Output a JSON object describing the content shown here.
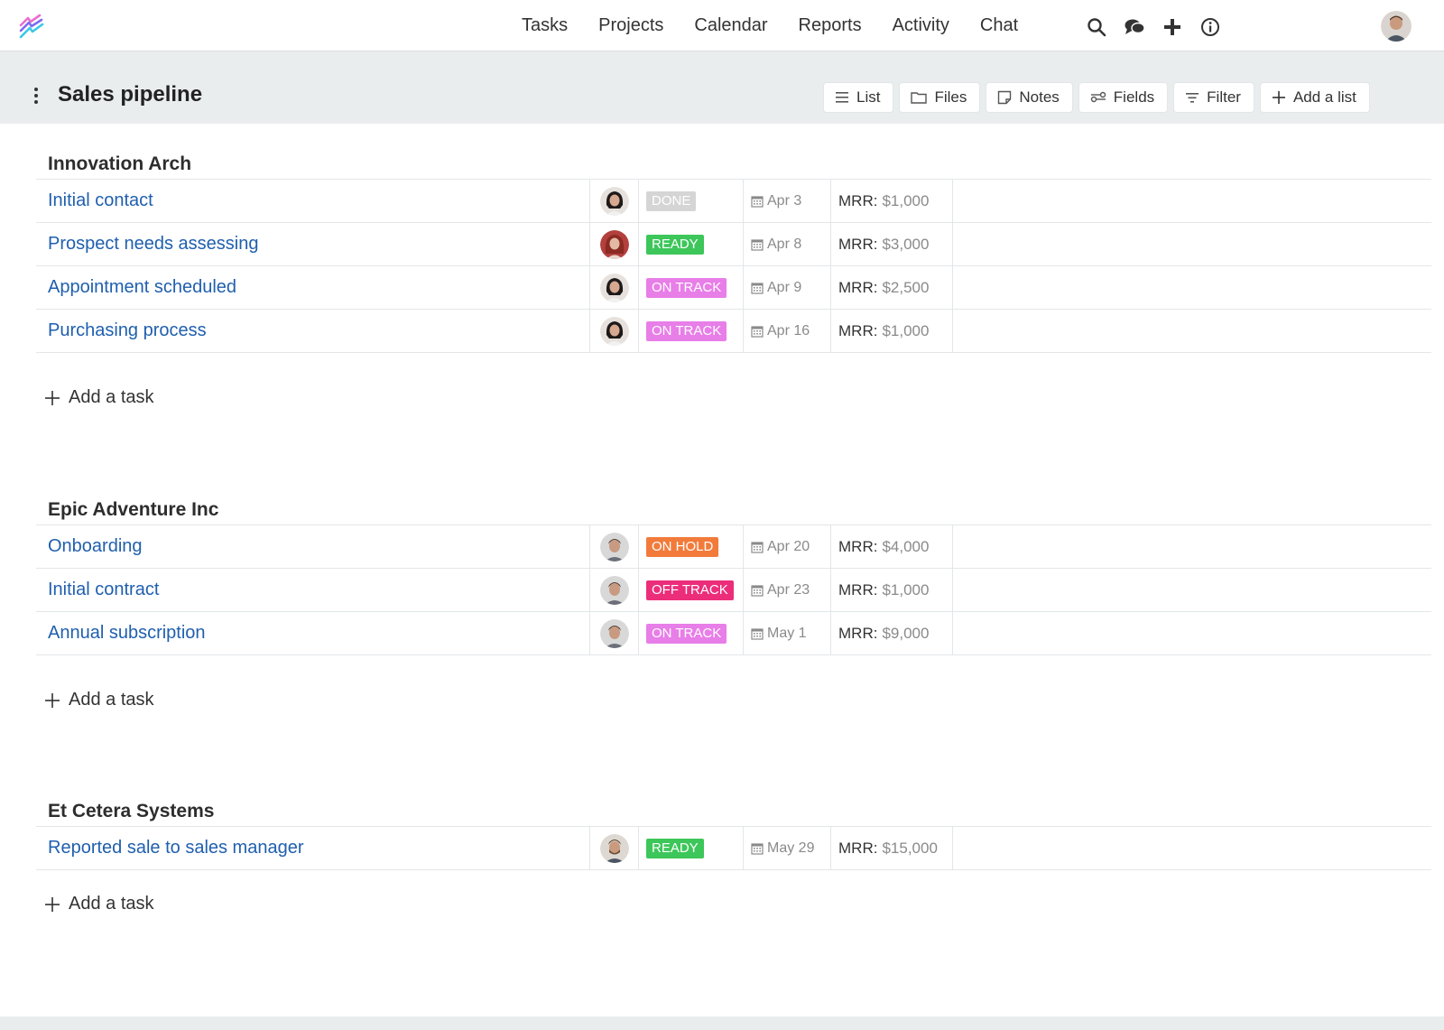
{
  "nav": {
    "links": [
      "Tasks",
      "Projects",
      "Calendar",
      "Reports",
      "Activity",
      "Chat"
    ],
    "icons": [
      "search-icon",
      "chat-bubbles-icon",
      "plus-icon",
      "info-icon"
    ]
  },
  "header": {
    "title": "Sales pipeline",
    "toolbar": [
      {
        "label": "List",
        "icon": "list-icon"
      },
      {
        "label": "Files",
        "icon": "folder-icon"
      },
      {
        "label": "Notes",
        "icon": "note-icon"
      },
      {
        "label": "Fields",
        "icon": "fields-icon"
      },
      {
        "label": "Filter",
        "icon": "filter-icon"
      },
      {
        "label": "Add a list",
        "icon": "plus-icon"
      }
    ]
  },
  "status_colors": {
    "DONE": "#d5d5d5",
    "READY": "#3dc65a",
    "ON TRACK": "#e87ee8",
    "ON HOLD": "#f27b3b",
    "OFF TRACK": "#ec2d7a"
  },
  "groups": [
    {
      "title": "Innovation Arch",
      "add_task_label": "Add a task",
      "tasks": [
        {
          "name": "Initial contact",
          "assignee": "woman-dark-hair",
          "status": "DONE",
          "date": "Apr 3",
          "mrr_label": "MRR:",
          "mrr_value": "$1,000"
        },
        {
          "name": "Prospect needs assessing",
          "assignee": "woman-red-hair",
          "status": "READY",
          "date": "Apr 8",
          "mrr_label": "MRR:",
          "mrr_value": "$3,000"
        },
        {
          "name": "Appointment scheduled",
          "assignee": "woman-dark-hair",
          "status": "ON TRACK",
          "date": "Apr 9",
          "mrr_label": "MRR:",
          "mrr_value": "$2,500"
        },
        {
          "name": "Purchasing process",
          "assignee": "woman-dark-hair",
          "status": "ON TRACK",
          "date": "Apr 16",
          "mrr_label": "MRR:",
          "mrr_value": "$1,000"
        }
      ]
    },
    {
      "title": "Epic Adventure Inc",
      "add_task_label": "Add a task",
      "tasks": [
        {
          "name": "Onboarding",
          "assignee": "man-short-hair",
          "status": "ON HOLD",
          "date": "Apr 20",
          "mrr_label": "MRR:",
          "mrr_value": "$4,000"
        },
        {
          "name": "Initial contract",
          "assignee": "man-short-hair",
          "status": "OFF TRACK",
          "date": "Apr 23",
          "mrr_label": "MRR:",
          "mrr_value": "$1,000"
        },
        {
          "name": "Annual subscription",
          "assignee": "man-short-hair",
          "status": "ON TRACK",
          "date": "May 1",
          "mrr_label": "MRR:",
          "mrr_value": "$9,000"
        }
      ]
    },
    {
      "title": "Et Cetera Systems",
      "add_task_label": "Add a task",
      "tasks": [
        {
          "name": "Reported sale to sales manager",
          "assignee": "man-beard",
          "status": "READY",
          "date": "May 29",
          "mrr_label": "MRR:",
          "mrr_value": "$15,000"
        }
      ]
    }
  ]
}
